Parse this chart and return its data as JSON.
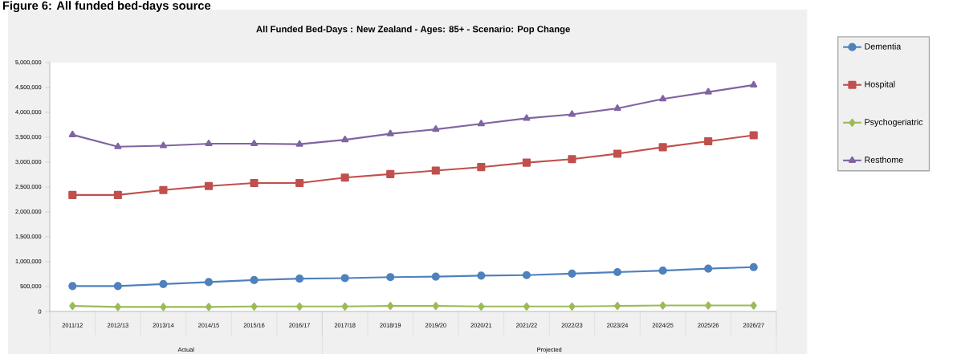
{
  "chart_data": {
    "type": "line",
    "title": "All Funded Bed-Days : New Zealand  - Ages: 85+ - Scenario: Pop Change",
    "annotations": [
      "Figure 6: All funded bed-days source",
      "Actual",
      "Projected"
    ],
    "categories": [
      "2011/12",
      "2012/13",
      "2013/14",
      "2014/15",
      "2015/16",
      "2016/17",
      "2017/18",
      "2018/19",
      "2019/20",
      "2020/21",
      "2021/22",
      "2022/23",
      "2023/24",
      "2024/25",
      "2025/26",
      "2026/27"
    ],
    "series": [
      {
        "name": "Dementia",
        "color": "#4f81bd",
        "marker": "circle",
        "values": [
          510000,
          510000,
          550000,
          590000,
          630000,
          660000,
          670000,
          690000,
          700000,
          720000,
          730000,
          760000,
          790000,
          820000,
          860000,
          890000
        ]
      },
      {
        "name": "Hospital",
        "color": "#c0504d",
        "marker": "square",
        "values": [
          2340000,
          2340000,
          2440000,
          2520000,
          2580000,
          2580000,
          2690000,
          2760000,
          2830000,
          2900000,
          2990000,
          3060000,
          3170000,
          3300000,
          3420000,
          3540000
        ]
      },
      {
        "name": "Psychogeriatric",
        "color": "#9bbb59",
        "marker": "diamond",
        "values": [
          110000,
          90000,
          90000,
          90000,
          100000,
          100000,
          100000,
          110000,
          110000,
          100000,
          100000,
          100000,
          110000,
          120000,
          120000,
          120000
        ]
      },
      {
        "name": "Resthome",
        "color": "#8064a2",
        "marker": "triangle",
        "values": [
          3550000,
          3310000,
          3330000,
          3370000,
          3370000,
          3360000,
          3450000,
          3570000,
          3660000,
          3770000,
          3880000,
          3960000,
          4080000,
          4270000,
          4410000,
          4550000
        ]
      }
    ],
    "ylim": [
      0,
      5000000
    ],
    "yticks": [
      {
        "value": 0,
        "label": "0"
      },
      {
        "value": 500000,
        "label": "500,000"
      },
      {
        "value": 1000000,
        "label": "1,000,000"
      },
      {
        "value": 1500000,
        "label": "1,500,000"
      },
      {
        "value": 2000000,
        "label": "2,000,000"
      },
      {
        "value": 2500000,
        "label": "2,500,000"
      },
      {
        "value": 3000000,
        "label": "3,000,000"
      },
      {
        "value": 3500000,
        "label": "3,500,000"
      },
      {
        "value": 4000000,
        "label": "4,000,000"
      },
      {
        "value": 4500000,
        "label": "4,500,000"
      },
      {
        "value": 5000000,
        "label": "5,000,000"
      }
    ],
    "grid": false,
    "legend": "right",
    "line_style": "solid"
  }
}
